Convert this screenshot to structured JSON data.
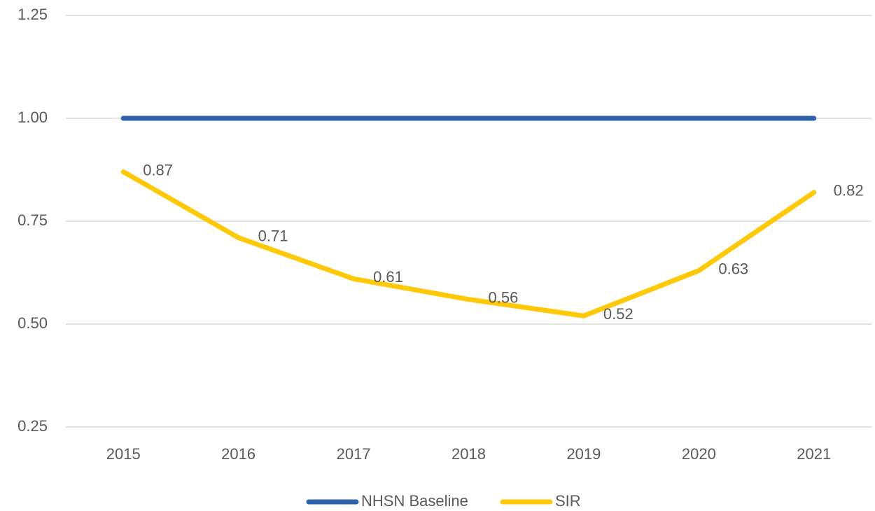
{
  "chart_data": {
    "type": "line",
    "categories": [
      "2015",
      "2016",
      "2017",
      "2018",
      "2019",
      "2020",
      "2021"
    ],
    "series": [
      {
        "name": "NHSN Baseline",
        "color": "#2f62ad",
        "values": [
          1,
          1,
          1,
          1,
          1,
          1,
          1
        ]
      },
      {
        "name": "SIR",
        "color": "#ffc90a",
        "values": [
          0.87,
          0.71,
          0.61,
          0.56,
          0.52,
          0.63,
          0.82
        ],
        "data_labels": true
      }
    ],
    "ylim": [
      0.25,
      1.25
    ],
    "yticks": [
      0.25,
      {
        "value": 0.5,
        "label": "0.50"
      },
      0.75,
      {
        "value": 1,
        "label": "1.00"
      },
      1.25
    ],
    "grid": true,
    "legend": "bottom"
  }
}
